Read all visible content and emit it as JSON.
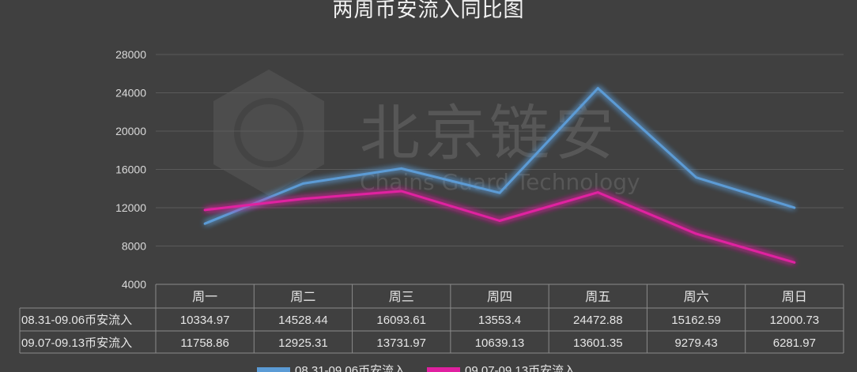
{
  "chart_data": {
    "type": "line",
    "title": "两周币安流入同比图",
    "categories": [
      "周一",
      "周二",
      "周三",
      "周四",
      "周五",
      "周六",
      "周日"
    ],
    "ylim": [
      4000,
      28000
    ],
    "yticks": [
      4000,
      8000,
      12000,
      16000,
      20000,
      24000,
      28000
    ],
    "grid": true,
    "legend_placement": "bottom",
    "data_table": true,
    "series": [
      {
        "name": "08.31-09.06币安流入",
        "color": "#5b9bd5",
        "values": [
          10334.97,
          14528.44,
          16093.61,
          13553.4,
          24472.88,
          15162.59,
          12000.73
        ]
      },
      {
        "name": "09.07-09.13币安流入",
        "color": "#e020a0",
        "values": [
          11758.86,
          12925.31,
          13731.97,
          10639.13,
          13601.35,
          9279.43,
          6281.97
        ]
      }
    ],
    "table_labels": [
      "10334.97",
      "14528.44",
      "16093.61",
      "13553.4",
      "24472.88",
      "15162.59",
      "12000.73",
      "11758.86",
      "12925.31",
      "13731.97",
      "10639.13",
      "13601.35",
      "9279.43",
      "6281.97"
    ]
  },
  "watermark": {
    "name": "北京链安",
    "subtitle": "Chains Guard Technology"
  },
  "colors": {
    "background": "#404040",
    "grid": "#5a5a5a"
  }
}
